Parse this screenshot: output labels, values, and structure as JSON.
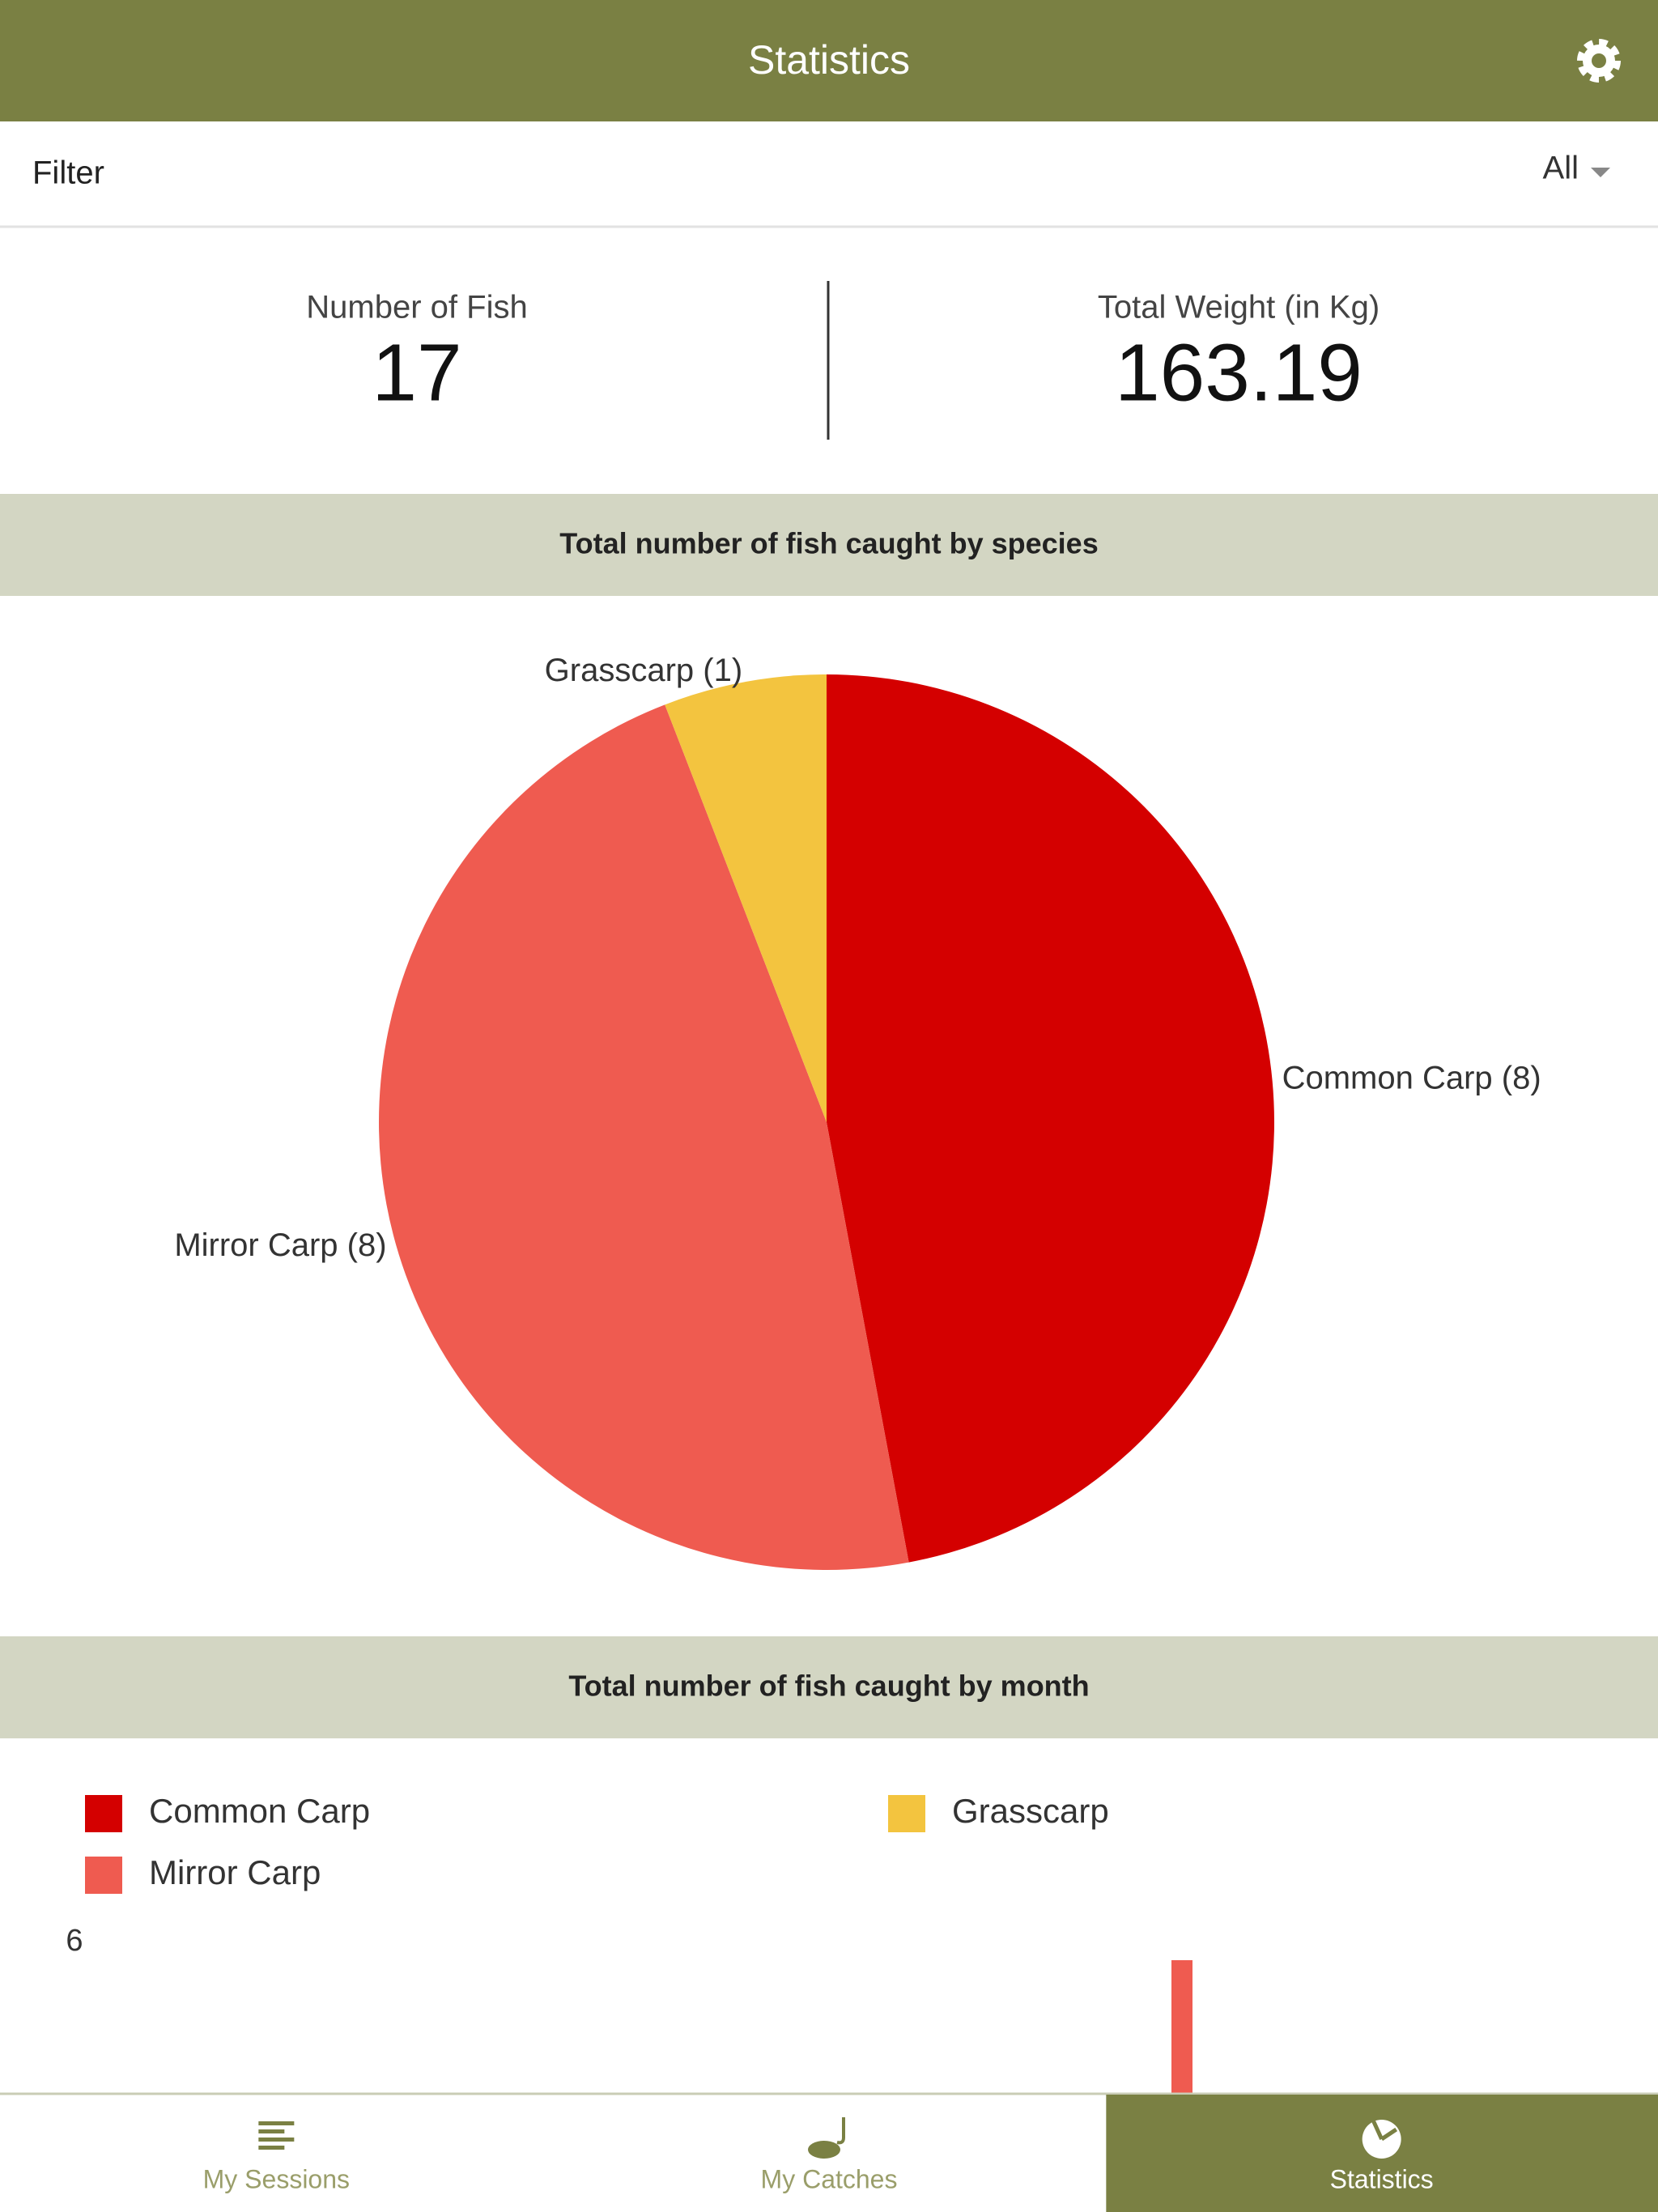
{
  "header": {
    "title": "Statistics"
  },
  "filter": {
    "label": "Filter",
    "value": "All"
  },
  "summary": {
    "fish": {
      "label": "Number of Fish",
      "value": 17
    },
    "weight": {
      "label": "Total Weight (in Kg)",
      "value": 163.19
    }
  },
  "species_chart": {
    "type": "pie",
    "title": "Total number of fish caught by species",
    "categories": [
      "Common Carp",
      "Mirror Carp",
      "Grasscarp"
    ],
    "values": [
      8,
      8,
      1
    ],
    "value_labels": [
      "Common Carp (8)",
      "Mirror Carp (8)",
      "Grasscarp (1)"
    ],
    "colors": [
      "#d40000",
      "#ef5b50",
      "#f3c43f"
    ]
  },
  "month_chart": {
    "type": "bar",
    "title": "Total number of fish caught by month",
    "categories": [
      null
    ],
    "series": [
      {
        "name": "Common Carp",
        "color": "#d40000",
        "values": [
          null
        ]
      },
      {
        "name": "Mirror Carp",
        "color": "#ef5b50",
        "values": [
          6
        ]
      },
      {
        "name": "Grasscarp",
        "color": "#f3c43f",
        "values": [
          null
        ]
      }
    ],
    "ylim": [
      0,
      6
    ],
    "yticks": [
      6
    ]
  },
  "nav": {
    "tabs": [
      "My Sessions",
      "My Catches",
      "Statistics"
    ],
    "active": 2
  }
}
